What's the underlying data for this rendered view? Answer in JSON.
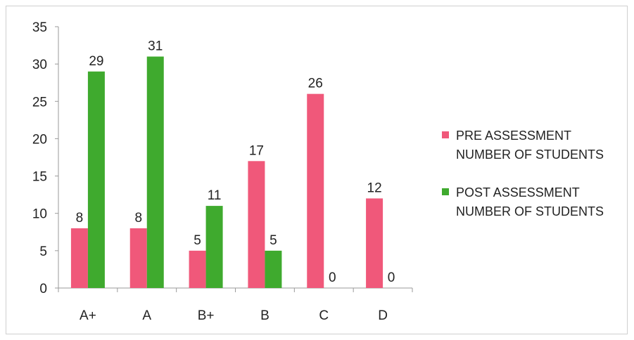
{
  "chart_data": {
    "type": "bar",
    "categories": [
      "A+",
      "A",
      "B+",
      "B",
      "C",
      "D"
    ],
    "series": [
      {
        "name": "PRE ASSESSMENT NUMBER OF STUDENTS",
        "legend_lines": [
          "PRE ASSESSMENT",
          "NUMBER OF STUDENTS"
        ],
        "color": "#f0587a",
        "values": [
          8,
          8,
          5,
          17,
          26,
          12
        ]
      },
      {
        "name": "POST ASSESSMENT NUMBER OF STUDENTS",
        "legend_lines": [
          "POST ASSESSMENT",
          "NUMBER OF STUDENTS"
        ],
        "color": "#3faa2e",
        "values": [
          29,
          31,
          11,
          5,
          0,
          0
        ]
      }
    ],
    "ylim": [
      0,
      35
    ],
    "yticks": [
      0,
      5,
      10,
      15,
      20,
      25,
      30,
      35
    ],
    "grid": false,
    "legend_position": "right",
    "data_labels": true
  }
}
